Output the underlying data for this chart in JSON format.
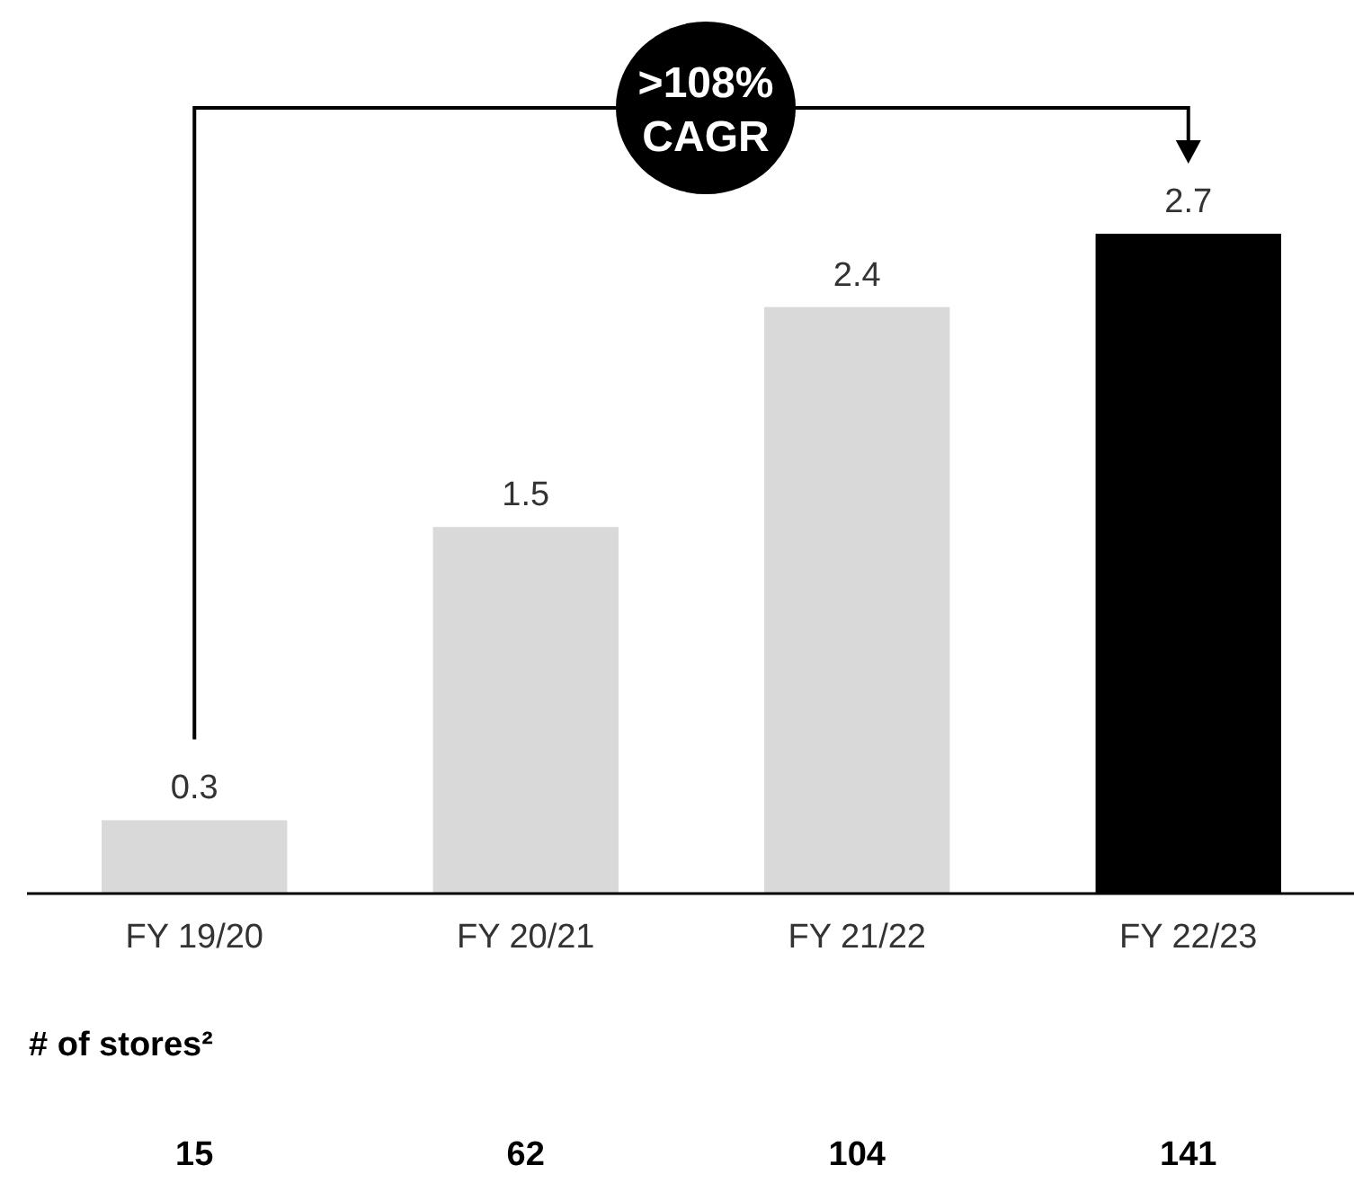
{
  "chart_data": {
    "type": "bar",
    "categories": [
      "FY 19/20",
      "FY 20/21",
      "FY 21/22",
      "FY 22/23"
    ],
    "values": [
      0.3,
      1.5,
      2.4,
      2.7
    ],
    "colors": [
      "#d9d9d9",
      "#d9d9d9",
      "#d9d9d9",
      "#000000"
    ],
    "data_labels": true,
    "grid": false,
    "annotations": [
      ">108%\nCAGR",
      "# of stores²",
      "15",
      "62",
      "104",
      "141"
    ]
  }
}
